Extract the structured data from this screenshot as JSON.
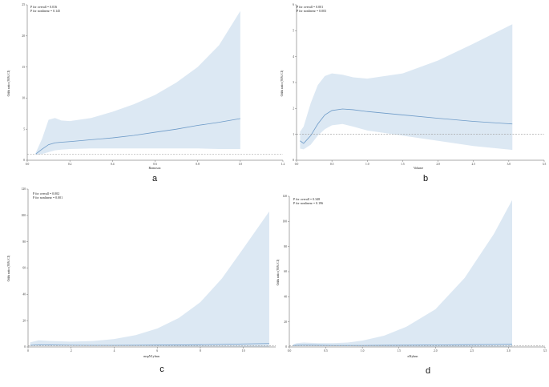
{
  "colors": {
    "ci_fill": "#dce8f3",
    "curve": "#6e9bc8",
    "reference": "#9a9a9a",
    "axis": "#555555"
  },
  "chart_data": [
    {
      "panel": "a",
      "type": "line",
      "title": "",
      "xlabel": "Romosoz",
      "ylabel": "Odds ratio (95% CI)",
      "annotations": [
        "P for overall = 0.016",
        "P for nonlinear = 0.145"
      ],
      "xlim": [
        0.0,
        1.2
      ],
      "ylim": [
        0,
        25
      ],
      "x_ticks": [
        "0.0",
        "0.2",
        "0.4",
        "0.6",
        "0.8",
        "1.0",
        "1.2"
      ],
      "y_ticks": [
        "0",
        "5",
        "10",
        "15",
        "20",
        "25"
      ],
      "reference_y": 1,
      "series": [
        {
          "x": [
            0.04,
            0.07,
            0.1,
            0.13,
            0.16,
            0.2,
            0.3,
            0.4,
            0.5,
            0.6,
            0.7,
            0.8,
            0.9,
            1.0
          ],
          "y": [
            1.0,
            1.8,
            2.5,
            2.8,
            2.9,
            3.0,
            3.3,
            3.6,
            4.0,
            4.5,
            5.0,
            5.6,
            6.1,
            6.7
          ],
          "lower": [
            0.85,
            1.0,
            1.3,
            1.6,
            1.7,
            1.8,
            1.9,
            1.9,
            1.9,
            1.9,
            1.9,
            1.9,
            1.8,
            1.8
          ],
          "upper": [
            1.2,
            3.5,
            6.5,
            6.8,
            6.4,
            6.3,
            6.8,
            7.8,
            9.0,
            10.5,
            12.5,
            15.0,
            18.5,
            24.0
          ]
        }
      ]
    },
    {
      "panel": "b",
      "type": "line",
      "title": "",
      "xlabel": "Volume",
      "ylabel": "Odds ratio (95% CI)",
      "annotations": [
        "P for overall = 0.001",
        "P for nonlinear = 0.003"
      ],
      "xlim": [
        0.0,
        3.5
      ],
      "ylim": [
        0,
        6
      ],
      "x_ticks": [
        "0.0",
        "0.5",
        "1.0",
        "1.5",
        "2.0",
        "2.5",
        "3.0",
        "3.5"
      ],
      "y_ticks": [
        "0",
        "1",
        "2",
        "3",
        "4",
        "5",
        "6"
      ],
      "reference_y": 1,
      "series": [
        {
          "x": [
            0.05,
            0.1,
            0.2,
            0.3,
            0.4,
            0.5,
            0.65,
            0.8,
            1.0,
            1.5,
            2.0,
            2.5,
            3.05
          ],
          "y": [
            0.75,
            0.65,
            0.95,
            1.4,
            1.75,
            1.92,
            1.98,
            1.95,
            1.88,
            1.75,
            1.62,
            1.5,
            1.4
          ],
          "lower": [
            0.45,
            0.42,
            0.6,
            0.95,
            1.2,
            1.35,
            1.4,
            1.3,
            1.15,
            0.95,
            0.75,
            0.55,
            0.4
          ],
          "upper": [
            1.1,
            1.3,
            2.2,
            2.9,
            3.25,
            3.35,
            3.3,
            3.2,
            3.15,
            3.35,
            3.85,
            4.5,
            5.25
          ]
        }
      ]
    },
    {
      "panel": "c",
      "type": "line",
      "title": "",
      "xlabel": "mspN1ylmn",
      "ylabel": "Odds ratio (95% CI)",
      "annotations": [
        "P for overall = 0.002",
        "P for nonlinear = 0.001"
      ],
      "xlim": [
        0,
        11.5
      ],
      "ylim": [
        0,
        120
      ],
      "x_ticks": [
        "0",
        "2",
        "4",
        "6",
        "8",
        "10"
      ],
      "y_ticks": [
        "0",
        "20",
        "40",
        "60",
        "80",
        "100",
        "120"
      ],
      "reference_y": 1,
      "series": [
        {
          "x": [
            0.1,
            0.5,
            1.0,
            2.0,
            3.0,
            4.0,
            5.0,
            6.0,
            7.0,
            8.0,
            9.0,
            10.0,
            11.2
          ],
          "y": [
            1.2,
            1.6,
            1.5,
            1.3,
            1.2,
            1.2,
            1.3,
            1.4,
            1.5,
            1.7,
            2.0,
            2.3,
            2.6
          ],
          "lower": [
            0.7,
            1.0,
            1.0,
            0.9,
            0.8,
            0.7,
            0.6,
            0.5,
            0.4,
            0.3,
            0.2,
            0.1,
            0.05
          ],
          "upper": [
            3.5,
            5.0,
            4.5,
            4.0,
            4.5,
            6.0,
            9.0,
            14.0,
            22.0,
            34.0,
            52.0,
            75.0,
            103.0
          ]
        }
      ]
    },
    {
      "panel": "d",
      "type": "line",
      "title": "",
      "xlabel": "nNyhnn",
      "ylabel": "Odds ratio (95% CI)",
      "annotations": [
        "P for overall = 0.348",
        "P for nonlinear = 0.196"
      ],
      "xlim": [
        0.0,
        3.5
      ],
      "ylim": [
        0,
        120
      ],
      "x_ticks": [
        "0.0",
        "0.5",
        "1.0",
        "1.5",
        "2.0",
        "2.5",
        "3.0",
        "3.5"
      ],
      "y_ticks": [
        "0",
        "20",
        "40",
        "60",
        "80",
        "100",
        "120"
      ],
      "reference_y": 1,
      "series": [
        {
          "x": [
            0.05,
            0.1,
            0.2,
            0.4,
            0.6,
            0.8,
            1.0,
            1.3,
            1.6,
            2.0,
            2.4,
            2.8,
            3.05
          ],
          "y": [
            1.1,
            1.3,
            1.4,
            1.3,
            1.2,
            1.2,
            1.2,
            1.3,
            1.4,
            1.6,
            1.8,
            2.0,
            2.2
          ],
          "lower": [
            0.6,
            0.8,
            0.9,
            0.8,
            0.7,
            0.6,
            0.5,
            0.4,
            0.3,
            0.2,
            0.1,
            0.05,
            0.02
          ],
          "upper": [
            2.0,
            3.0,
            3.5,
            3.0,
            3.0,
            3.5,
            5.0,
            9.0,
            16.0,
            30.0,
            55.0,
            90.0,
            117.0
          ]
        }
      ]
    }
  ]
}
